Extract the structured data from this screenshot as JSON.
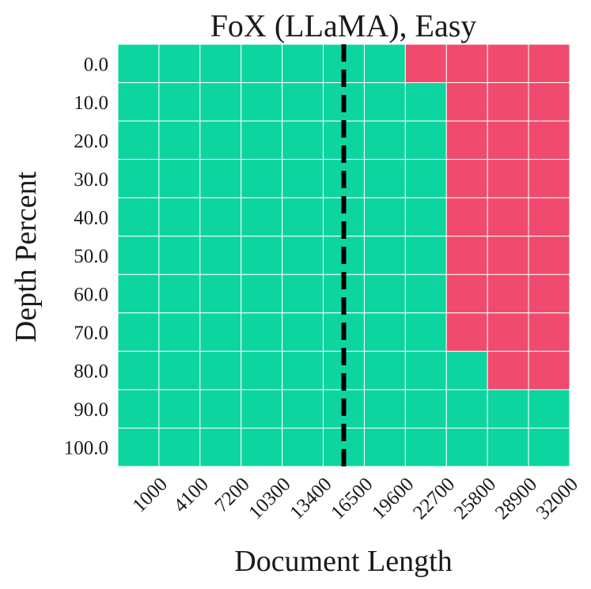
{
  "chart_data": {
    "type": "heatmap",
    "title": "FoX (LLaMA), Easy",
    "xlabel": "Document Length",
    "ylabel": "Depth Percent",
    "x_categories": [
      "1000",
      "4100",
      "7200",
      "10300",
      "13400",
      "16500",
      "19600",
      "22700",
      "25800",
      "28900",
      "32000"
    ],
    "y_categories": [
      "0.0",
      "10.0",
      "20.0",
      "30.0",
      "40.0",
      "50.0",
      "60.0",
      "70.0",
      "80.0",
      "90.0",
      "100.0"
    ],
    "values": [
      [
        1,
        1,
        1,
        1,
        1,
        1,
        1,
        0,
        0,
        0,
        0
      ],
      [
        1,
        1,
        1,
        1,
        1,
        1,
        1,
        1,
        0,
        0,
        0
      ],
      [
        1,
        1,
        1,
        1,
        1,
        1,
        1,
        1,
        0,
        0,
        0
      ],
      [
        1,
        1,
        1,
        1,
        1,
        1,
        1,
        1,
        0,
        0,
        0
      ],
      [
        1,
        1,
        1,
        1,
        1,
        1,
        1,
        1,
        0,
        0,
        0
      ],
      [
        1,
        1,
        1,
        1,
        1,
        1,
        1,
        1,
        0,
        0,
        0
      ],
      [
        1,
        1,
        1,
        1,
        1,
        1,
        1,
        1,
        0,
        0,
        0
      ],
      [
        1,
        1,
        1,
        1,
        1,
        1,
        1,
        1,
        0,
        0,
        0
      ],
      [
        1,
        1,
        1,
        1,
        1,
        1,
        1,
        1,
        1,
        0,
        0
      ],
      [
        1,
        1,
        1,
        1,
        1,
        1,
        1,
        1,
        1,
        1,
        1
      ],
      [
        1,
        1,
        1,
        1,
        1,
        1,
        1,
        1,
        1,
        1,
        1
      ]
    ],
    "value_colors": {
      "1": "#0dd59f",
      "0": "#f04a6e"
    },
    "reference_line": {
      "x_value": 16500,
      "style": "dashed",
      "color": "#000000"
    },
    "grid_color": "#ffffff",
    "legend": "none"
  }
}
